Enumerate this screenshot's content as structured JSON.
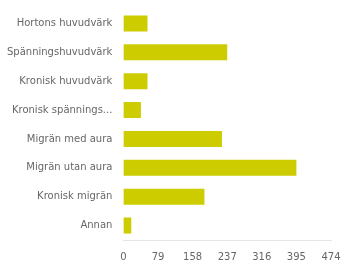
{
  "chart_data": {
    "type": "bar",
    "orientation": "horizontal",
    "categories": [
      "Hortons huvudvärk",
      "Spänningshuvudvärk",
      "Kronisk huvudvärk",
      "Kronisk spännings...",
      "Migrän med aura",
      "Migrän utan aura",
      "Kronisk migrän",
      "Annan"
    ],
    "values": [
      55,
      237,
      55,
      40,
      225,
      395,
      185,
      18
    ],
    "color": "#cccc00",
    "xlim": [
      0,
      474
    ],
    "xticks": [
      0,
      79,
      158,
      237,
      316,
      395,
      474
    ],
    "grid": false
  }
}
